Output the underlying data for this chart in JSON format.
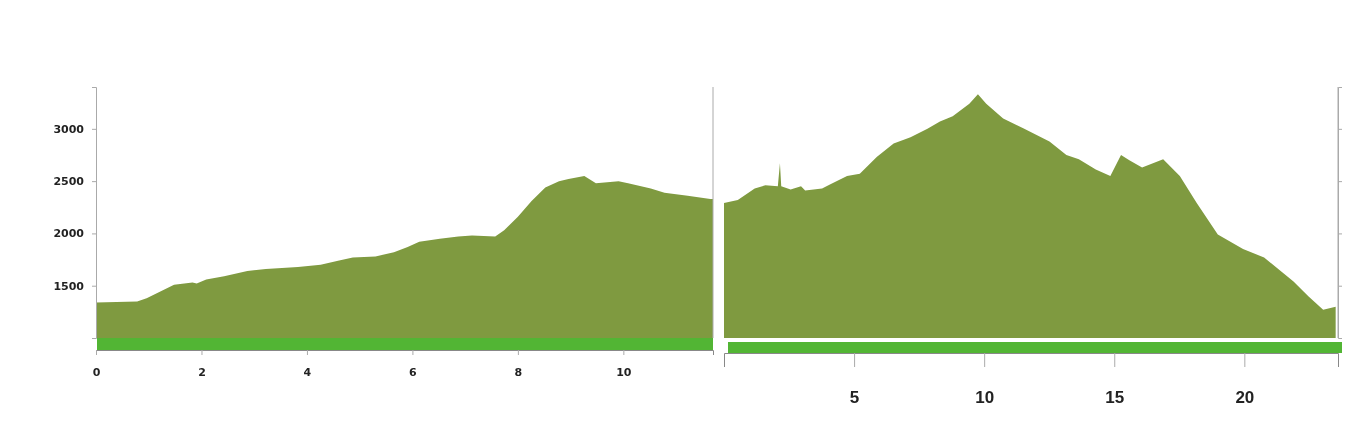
{
  "chart_data": [
    {
      "type": "area",
      "x": [
        0,
        0.78,
        0.96,
        1.48,
        1.83,
        1.91,
        2.09,
        2.43,
        2.87,
        3.22,
        3.83,
        4.26,
        4.61,
        4.87,
        5.3,
        5.65,
        5.91,
        6.13,
        6.52,
        6.87,
        7.13,
        7.57,
        7.74,
        8.0,
        8.26,
        8.52,
        8.78,
        8.96,
        9.26,
        9.48,
        9.91,
        10.09,
        10.52,
        10.78,
        11.22,
        11.65,
        11.7
      ],
      "values": [
        1340,
        1350,
        1380,
        1510,
        1530,
        1520,
        1560,
        1590,
        1640,
        1660,
        1680,
        1700,
        1740,
        1770,
        1780,
        1820,
        1870,
        1920,
        1950,
        1970,
        1980,
        1970,
        2030,
        2160,
        2310,
        2440,
        2500,
        2520,
        2550,
        2480,
        2500,
        2480,
        2430,
        2390,
        2360,
        2330,
        2330
      ],
      "color": "#7f9a40",
      "xlim": [
        0,
        11.7
      ],
      "xticks": [
        0,
        2,
        4,
        6,
        8,
        10
      ],
      "ylim": [
        1000,
        3400
      ],
      "yticks": [
        1500,
        2000,
        2500,
        3000
      ]
    },
    {
      "type": "area",
      "x": [
        0,
        0.53,
        1.18,
        1.59,
        2.07,
        2.15,
        2.2,
        2.56,
        2.96,
        3.12,
        3.77,
        4.09,
        4.73,
        5.22,
        5.87,
        6.52,
        7.17,
        7.82,
        8.3,
        8.79,
        9.43,
        9.76,
        10.08,
        10.73,
        11.54,
        12.51,
        13.16,
        13.64,
        14.29,
        14.85,
        15.26,
        15.58,
        16.07,
        16.88,
        17.52,
        18.17,
        18.98,
        19.95,
        20.76,
        21.89,
        22.46,
        23.03,
        23.51
      ],
      "values": [
        2290,
        2320,
        2430,
        2460,
        2450,
        2670,
        2450,
        2420,
        2450,
        2410,
        2430,
        2470,
        2550,
        2570,
        2730,
        2860,
        2920,
        3000,
        3070,
        3120,
        3240,
        3330,
        3240,
        3100,
        3000,
        2880,
        2750,
        2710,
        2610,
        2550,
        2750,
        2700,
        2630,
        2710,
        2550,
        2290,
        1990,
        1850,
        1770,
        1540,
        1400,
        1270,
        1300
      ],
      "color": "#7f9a40",
      "xlim": [
        0,
        23.6
      ],
      "xticks": [
        5,
        10,
        15,
        20
      ],
      "ylim": [
        1000,
        3400
      ],
      "yticks": [
        1500,
        2000,
        2500,
        3000
      ],
      "tick_labels": "x"
    }
  ]
}
